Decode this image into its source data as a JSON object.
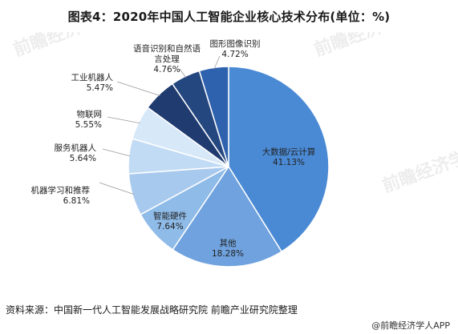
{
  "title": "图表4：2020年中国人工智能企业核心技术分布(单位：%)",
  "source_note": "资料来源：中国新一代人工智能发展战略研究院 前瞻产业研究院整理",
  "credit": "@前瞻经济学人APP",
  "watermark": {
    "text": "前瞻经济学人"
  },
  "colors": {
    "dark_navy": "#1f3b70",
    "navy": "#25477f",
    "blue_mid": "#3474c5",
    "blue_main": "#4a8ad4",
    "blue_light": "#6fa2de",
    "blue_lighter": "#8fbbe8",
    "blue_pale": "#b7d3f1",
    "blue_palest": "#cfe2f7",
    "blue_white": "#e1edfa"
  },
  "chart_data": {
    "type": "pie",
    "title": "图表4：2020年中国人工智能企业核心技术分布(单位：%)",
    "unit": "%",
    "slices": [
      {
        "label": "大数据/云计算",
        "value": 41.13,
        "value_label": "41.13%",
        "color": "#4a8ad4"
      },
      {
        "label": "其他",
        "value": 18.28,
        "value_label": "18.28%",
        "color": "#6fa2de"
      },
      {
        "label": "智能硬件",
        "value": 7.64,
        "value_label": "7.64%",
        "color": "#8fbbe8"
      },
      {
        "label": "机器学习和推荐",
        "value": 6.81,
        "value_label": "6.81%",
        "color": "#a8c9ee"
      },
      {
        "label": "服务机器人",
        "value": 5.64,
        "value_label": "5.64%",
        "color": "#c1dbf4"
      },
      {
        "label": "物联网",
        "value": 5.55,
        "value_label": "5.55%",
        "color": "#d7e8f9"
      },
      {
        "label": "工业机器人",
        "value": 5.47,
        "value_label": "5.47%",
        "color": "#1f3b70"
      },
      {
        "label": "语音识别和自然语言处理",
        "value": 4.76,
        "value_label": "4.76%",
        "color": "#25477f"
      },
      {
        "label": "图形图像识别",
        "value": 4.72,
        "value_label": "4.72%",
        "color": "#2f62ae"
      }
    ]
  }
}
